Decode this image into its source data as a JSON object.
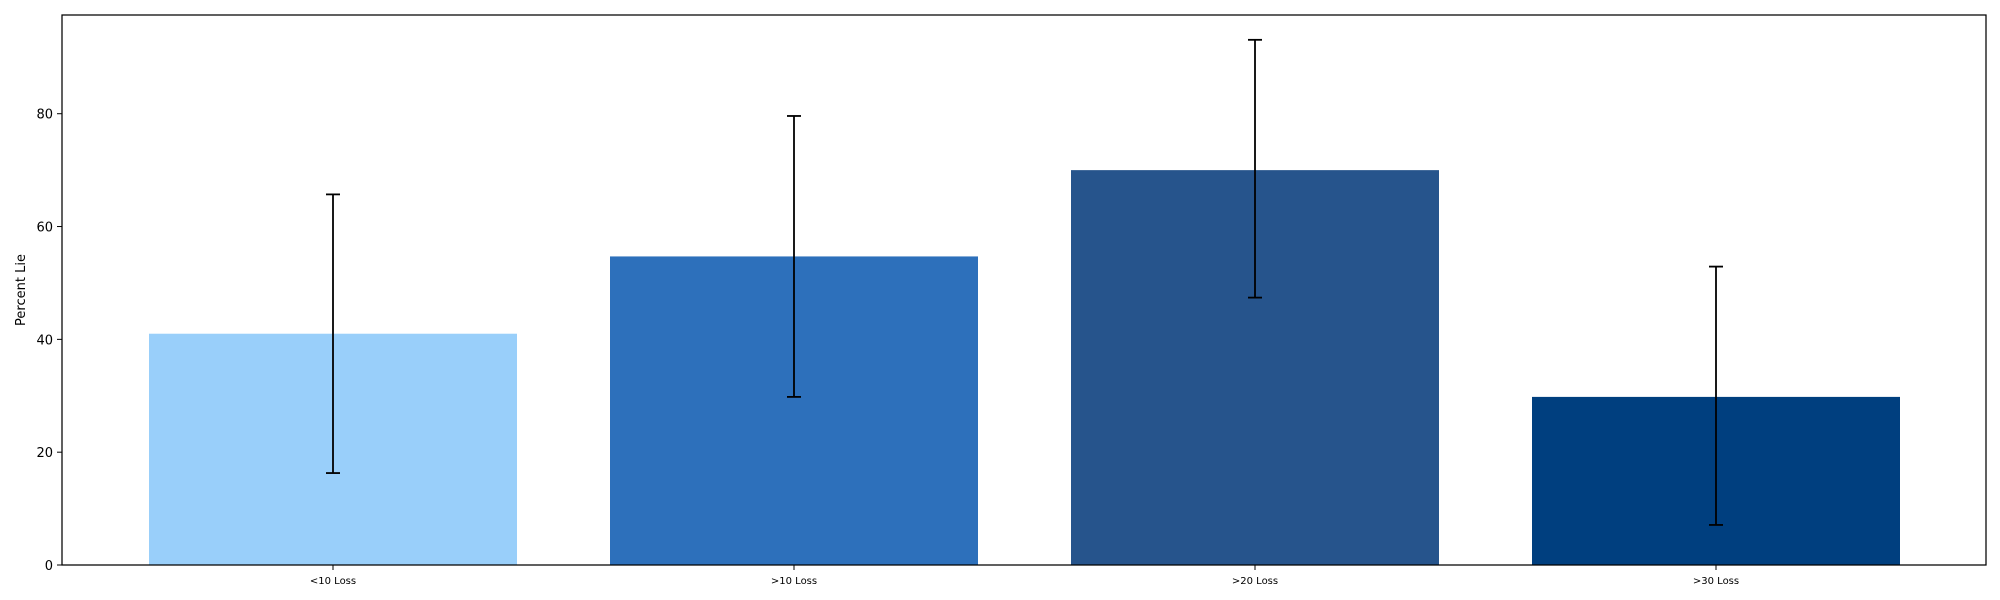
{
  "chart_data": {
    "type": "bar",
    "title": "",
    "xlabel": "",
    "ylabel": "Percent Lie",
    "categories": [
      "<10 Loss",
      ">10 Loss",
      ">20 Loss",
      ">30 Loss"
    ],
    "values": [
      41,
      54.7,
      70,
      29.8
    ],
    "error_low": [
      16.3,
      29.8,
      47.4,
      7.1
    ],
    "error_high": [
      65.7,
      79.6,
      93.1,
      52.9
    ],
    "colors": [
      "#99cffa",
      "#2d70bb",
      "#26548c",
      "#003f7f"
    ],
    "ylim": [
      0,
      97.5
    ],
    "yticks": [
      0,
      20,
      40,
      60,
      80
    ],
    "grid": false,
    "legend": false
  }
}
